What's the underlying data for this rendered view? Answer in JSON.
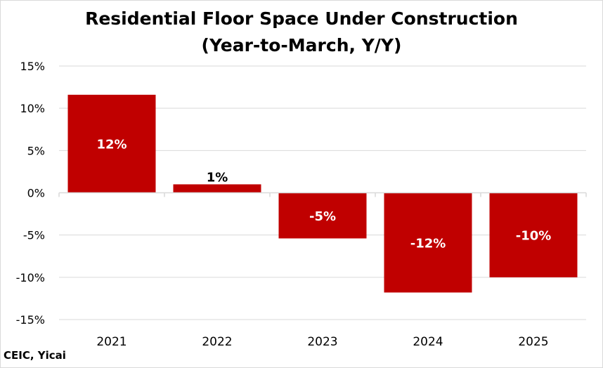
{
  "chart_data": {
    "type": "bar",
    "title_line1": "Residential Floor Space Under Construction",
    "title_line2": "(Year-to-March, Y/Y)",
    "categories": [
      "2021",
      "2022",
      "2023",
      "2024",
      "2025"
    ],
    "values": [
      11.6,
      1.0,
      -5.4,
      -11.8,
      -10.0
    ],
    "data_labels": [
      "12%",
      "1%",
      "-5%",
      "-12%",
      "-10%"
    ],
    "y_ticks": [
      15,
      10,
      5,
      0,
      -5,
      -10,
      -15
    ],
    "y_tick_labels": [
      "15%",
      "10%",
      "5%",
      "0%",
      "-5%",
      "-10%",
      "-15%"
    ],
    "ylim": [
      -15,
      15
    ],
    "grid": true,
    "bar_color": "#c00000",
    "xlabel": "",
    "ylabel": ""
  },
  "source": "CEIC, Yicai"
}
